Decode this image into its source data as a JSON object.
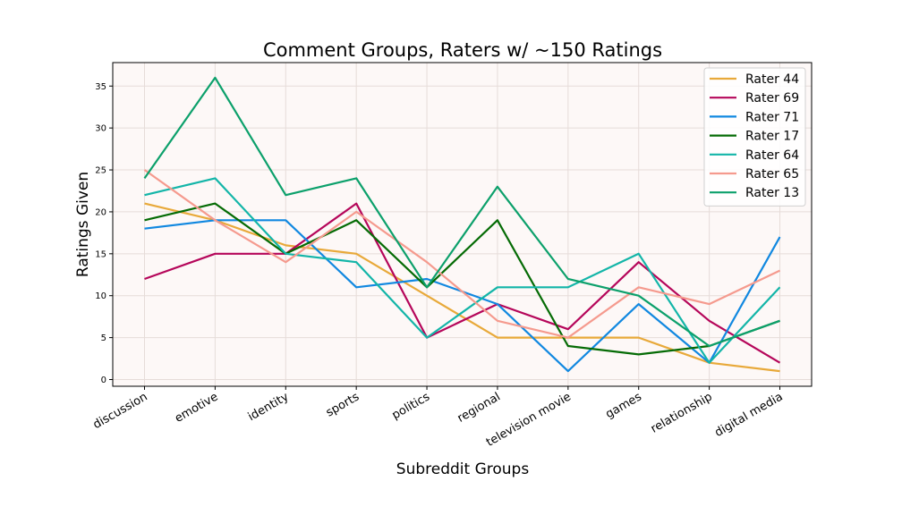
{
  "chart_data": {
    "type": "line",
    "title": "Comment Groups, Raters w/ ~150 Ratings",
    "xlabel": "Subreddit Groups",
    "ylabel": "Ratings Given",
    "categories": [
      "discussion",
      "emotive",
      "identity",
      "sports",
      "politics",
      "regional",
      "television movie",
      "games",
      "relationship",
      "digital media"
    ],
    "yticks": [
      0,
      5,
      10,
      15,
      20,
      25,
      30,
      35
    ],
    "ylim": [
      -0.8,
      37.8
    ],
    "grid": true,
    "legend_position": "top-right",
    "background_color": "#fdf8f7",
    "series": [
      {
        "name": "Rater 44",
        "color": "#e8a93a",
        "values": [
          21,
          19,
          16,
          15,
          10,
          5,
          5,
          5,
          2,
          1
        ]
      },
      {
        "name": "Rater 69",
        "color": "#b5065a",
        "values": [
          12,
          15,
          15,
          21,
          5,
          9,
          6,
          14,
          7,
          2
        ]
      },
      {
        "name": "Rater 71",
        "color": "#1188e0",
        "values": [
          18,
          19,
          19,
          11,
          12,
          9,
          1,
          9,
          2,
          17
        ]
      },
      {
        "name": "Rater 17",
        "color": "#056b05",
        "values": [
          19,
          21,
          15,
          19,
          11,
          19,
          4,
          3,
          4,
          7
        ]
      },
      {
        "name": "Rater 64",
        "color": "#13b5a8",
        "values": [
          22,
          24,
          15,
          14,
          5,
          11,
          11,
          15,
          2,
          11
        ]
      },
      {
        "name": "Rater 65",
        "color": "#f59a8e",
        "values": [
          25,
          19,
          14,
          20,
          14,
          7,
          5,
          11,
          9,
          13
        ]
      },
      {
        "name": "Rater 13",
        "color": "#0ca06b",
        "values": [
          24,
          36,
          22,
          24,
          11,
          23,
          12,
          10,
          4,
          7
        ]
      }
    ]
  }
}
